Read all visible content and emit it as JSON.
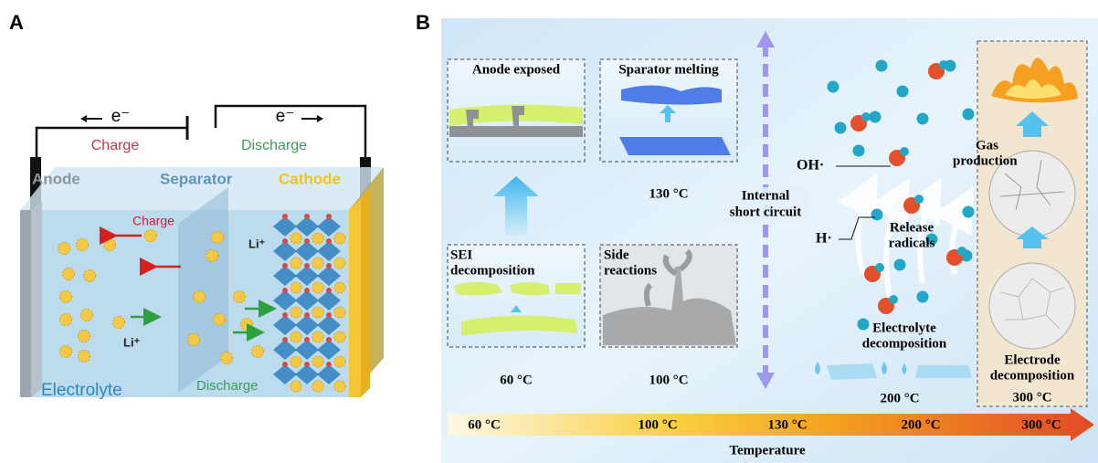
{
  "panel_a": {
    "label": "A",
    "wire": {
      "left_electron": "e⁻",
      "left_mode": "Charge",
      "right_electron": "e⁻",
      "right_mode": "Discharge"
    },
    "components": {
      "anode": "Anode",
      "separator": "Separator",
      "cathode": "Cathode"
    },
    "inside": {
      "charge": "Charge",
      "li_upper": "Li⁺",
      "li_lower": "Li⁺",
      "discharge": "Discharge",
      "electrolyte": "Electrolyte"
    }
  },
  "panel_b": {
    "label": "B",
    "anode_exposed": "Anode exposed",
    "separator_melting": "Sparator melting",
    "separator_temp": "130 °C",
    "sei_decomposition": [
      "SEI",
      "decomposition"
    ],
    "side_reactions": [
      "Side",
      "reactions"
    ],
    "sei_temp": "60 °C",
    "side_temp": "100 °C",
    "internal_short_circuit": [
      "Internal",
      "short circuit"
    ],
    "oh_radical": "OH·",
    "h_radical": "H·",
    "release_radicals": [
      "Release",
      "radicals"
    ],
    "electrolyte_decomposition": [
      "Electrolyte",
      "decomposition"
    ],
    "electrolyte_temp": "200 °C",
    "gas_production": [
      "Gas",
      "production"
    ],
    "electrode_decomposition": [
      "Electrode",
      "decomposition"
    ],
    "electrode_temp": "300 °C",
    "temperature_scale": [
      "60 °C",
      "100 °C",
      "130 °C",
      "200 °C",
      "300 °C"
    ],
    "temperature_axis": "Temperature"
  }
}
